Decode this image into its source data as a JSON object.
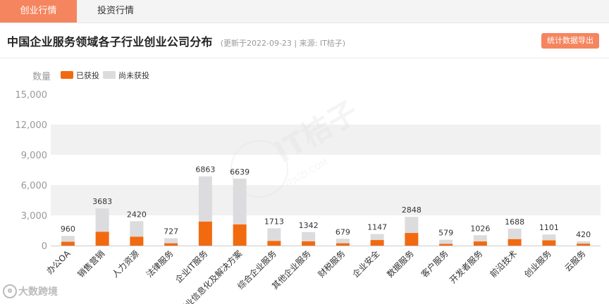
{
  "tabs": [
    {
      "label": "创业行情",
      "active": true
    },
    {
      "label": "投资行情",
      "active": false
    }
  ],
  "header": {
    "title": "中国企业服务领域各子行业创业公司分布",
    "subtitle": "(更新于2022-09-23 | 来源: IT桔子)",
    "export_label": "统计数据导出"
  },
  "watermark": {
    "brand": "IT桔子",
    "url": "ITJUZI.COM"
  },
  "footer": {
    "brand": "大数跨境"
  },
  "colors": {
    "accent": "#f5855f",
    "invested": "#f26a10",
    "not_invested": "#dcdcde",
    "band": "#f1f1f1"
  },
  "chart_data": {
    "type": "bar",
    "stacked": true,
    "ylabel": "数量",
    "ylim": [
      0,
      15000
    ],
    "yticks": [
      "0",
      "3,000",
      "6,000",
      "9,000",
      "12,000",
      "15,000"
    ],
    "legend_position": "top-left",
    "categories": [
      "办公OA",
      "销售营销",
      "人力资源",
      "法律服务",
      "企业IT服务",
      "行业信息化及解决方案",
      "综合企业服务",
      "其他企业服务",
      "财税服务",
      "企业安全",
      "数据服务",
      "客户服务",
      "开发者服务",
      "前沿技术",
      "创业服务",
      "云服务"
    ],
    "totals": [
      960,
      3683,
      2420,
      727,
      6863,
      6639,
      1713,
      1342,
      679,
      1147,
      2848,
      579,
      1026,
      1688,
      1101,
      420
    ],
    "total_labels": [
      "960",
      "3683",
      "2420",
      "727",
      "6863",
      "6639",
      "1713",
      "1342",
      "679",
      "1147",
      "2848",
      "579",
      "1026",
      "1688",
      "1101",
      "420"
    ],
    "series": [
      {
        "name": "已获投",
        "values": [
          380,
          1370,
          880,
          230,
          2380,
          2100,
          460,
          420,
          230,
          550,
          1250,
          170,
          410,
          640,
          520,
          190
        ]
      },
      {
        "name": "尚未获投",
        "values": [
          580,
          2313,
          1540,
          497,
          4483,
          4539,
          1253,
          922,
          449,
          597,
          1598,
          409,
          616,
          1048,
          581,
          230
        ]
      }
    ],
    "grid": true
  }
}
